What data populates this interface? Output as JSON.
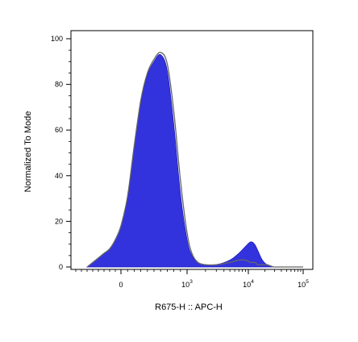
{
  "chart_data": {
    "type": "area",
    "xlabel": "R675-H :: APC-H",
    "ylabel": "Normalized To Mode",
    "x_scale": "biexponential",
    "x_tick_labels": [
      {
        "base": "0",
        "exp": "",
        "value": 0
      },
      {
        "base": "10",
        "exp": "3",
        "value": 1000
      },
      {
        "base": "10",
        "exp": "4",
        "value": 10000
      },
      {
        "base": "10",
        "exp": "5",
        "value": 100000
      }
    ],
    "y_ticks": [
      0,
      20,
      40,
      60,
      80,
      100
    ],
    "ylim": [
      0,
      100
    ],
    "grid": false,
    "colors": {
      "filled_series": "#3333dd",
      "filled_edge": "#1a1ac0",
      "overlay_series": "#666666"
    },
    "series": [
      {
        "style": "filled",
        "x": [
          -600,
          -400,
          -300,
          -200,
          -100,
          0,
          100,
          200,
          300,
          400,
          500,
          600,
          700,
          800,
          900,
          1000,
          1200,
          1500,
          2000,
          3000,
          5000,
          7000,
          9000,
          11000,
          13000,
          15000,
          18000,
          22000,
          30000,
          50000,
          80000,
          100000
        ],
        "y": [
          0,
          4,
          6,
          8,
          12,
          18,
          30,
          52,
          72,
          84,
          90,
          93,
          86,
          62,
          32,
          12,
          5,
          2,
          1,
          1,
          3,
          6,
          9,
          11,
          10,
          7,
          3,
          1,
          0,
          0,
          0,
          0
        ]
      },
      {
        "style": "outline",
        "x": [
          -600,
          -400,
          -300,
          -200,
          -100,
          0,
          100,
          200,
          300,
          400,
          500,
          600,
          700,
          800,
          900,
          1000,
          1200,
          1500,
          2000,
          3000,
          5000,
          7000,
          9000,
          11000,
          13000,
          15000,
          18000,
          22000,
          30000,
          50000,
          80000,
          100000
        ],
        "y": [
          0,
          4,
          6,
          8,
          12,
          18,
          31,
          53,
          73,
          85,
          91,
          94,
          89,
          68,
          38,
          15,
          6,
          2,
          1,
          1,
          2,
          3,
          3,
          2,
          2,
          1,
          1,
          1,
          0,
          0,
          0,
          0
        ]
      }
    ]
  }
}
